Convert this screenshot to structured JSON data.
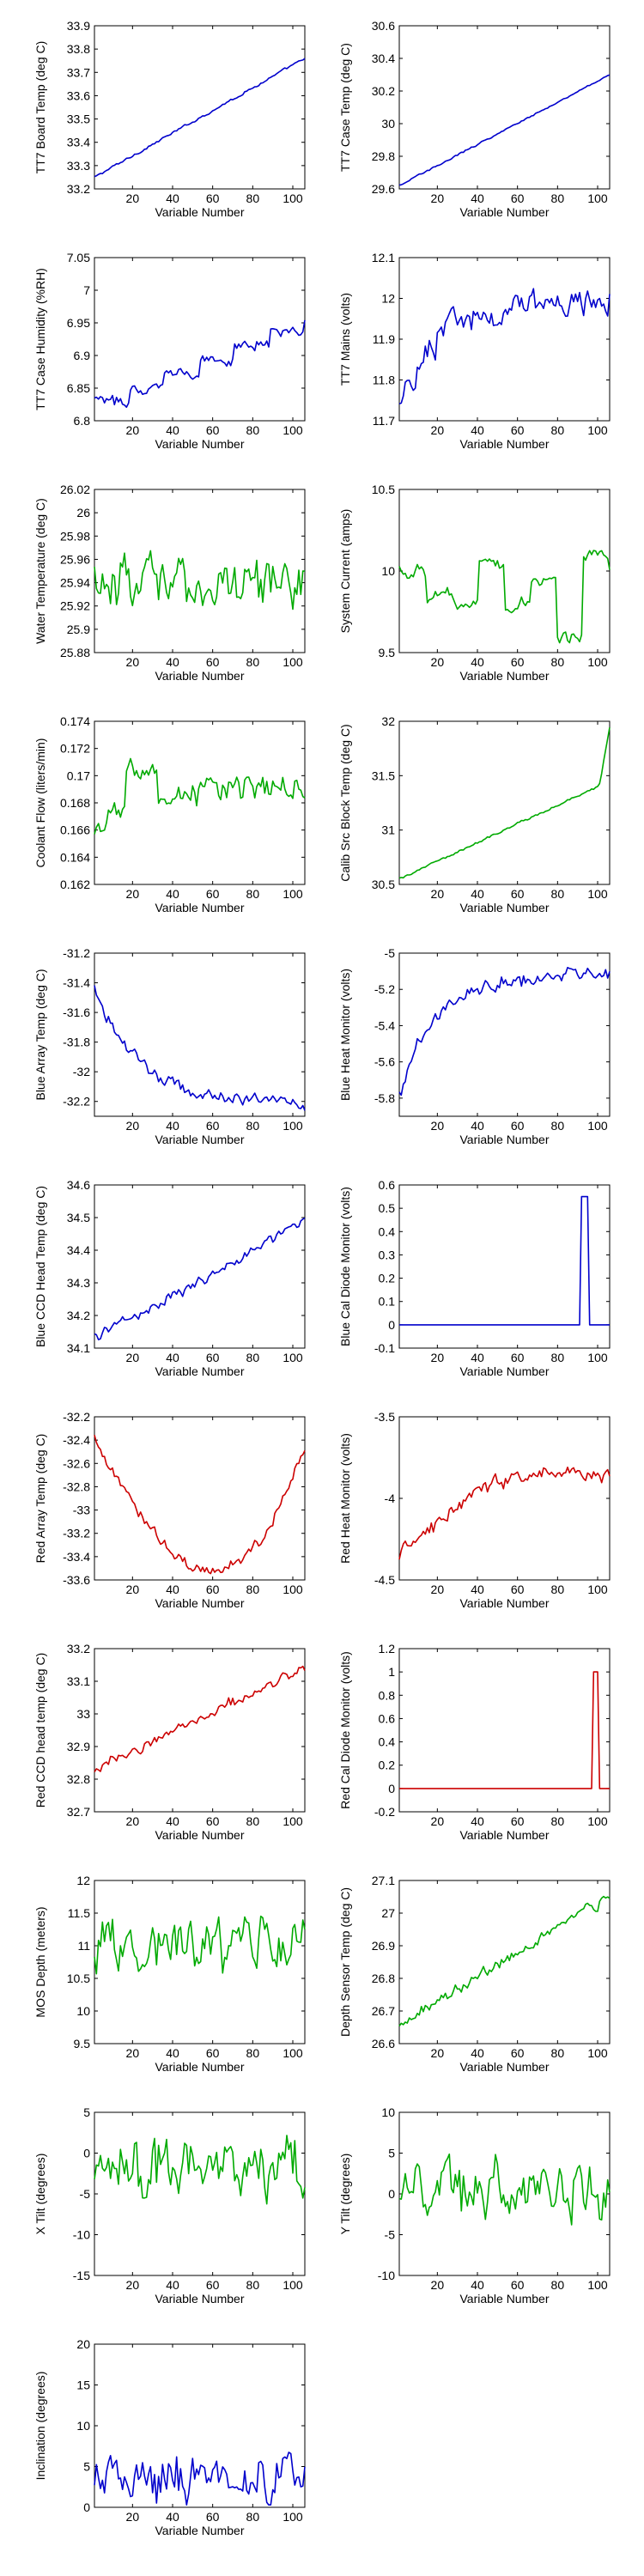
{
  "xlabel": "Variable Number",
  "x_ticks": [
    20,
    40,
    60,
    80,
    100
  ],
  "xlim": [
    1,
    106
  ],
  "chart_data": [
    {
      "type": "line",
      "ylabel": "TT7 Board Temp (deg C)",
      "ylim": [
        33.2,
        33.9
      ],
      "yticks": [
        33.2,
        33.3,
        33.4,
        33.5,
        33.6,
        33.7,
        33.8,
        33.9
      ],
      "color": "#0000cc",
      "shape": "trend",
      "v0": 33.25,
      "v1": 33.76,
      "noise": 0.004
    },
    {
      "type": "line",
      "ylabel": "TT7 Case Temp (deg C)",
      "ylim": [
        29.6,
        30.6
      ],
      "yticks": [
        29.6,
        29.8,
        30,
        30.2,
        30.4,
        30.6
      ],
      "color": "#0000cc",
      "shape": "trend",
      "v0": 29.62,
      "v1": 30.3,
      "noise": 0.004
    },
    {
      "type": "line",
      "ylabel": "TT7 Case Humidity (%RH)",
      "ylim": [
        6.8,
        7.05
      ],
      "yticks": [
        6.8,
        6.85,
        6.9,
        6.95,
        7,
        7.05
      ],
      "color": "#0000cc",
      "shape": "steps",
      "v0": 6.83,
      "v1": 6.96,
      "noise": 0.006
    },
    {
      "type": "line",
      "ylabel": "TT7 Mains  (volts)",
      "ylim": [
        11.7,
        12.1
      ],
      "yticks": [
        11.7,
        11.8,
        11.9,
        12,
        12.1
      ],
      "color": "#0000cc",
      "shape": "rise",
      "v0": 11.72,
      "v1": 11.99,
      "noise": 0.025
    },
    {
      "type": "line",
      "ylabel": "Water Temperature (deg C)",
      "ylim": [
        25.88,
        26.02
      ],
      "yticks": [
        25.88,
        25.9,
        25.92,
        25.94,
        25.96,
        25.98,
        26,
        26.02
      ],
      "color": "#00aa00",
      "shape": "noise",
      "v0": 25.94,
      "v1": 25.94,
      "noise": 0.015
    },
    {
      "type": "line",
      "ylabel": "System Current (amps)",
      "ylim": [
        9.5,
        10.5
      ],
      "yticks": [
        9.5,
        10,
        10.5
      ],
      "color": "#00aa00",
      "shape": "blocks",
      "v0": 9.85,
      "v1": 10.0,
      "noise": 0.03
    },
    {
      "type": "line",
      "ylabel": "Coolant Flow (liters/min)",
      "ylim": [
        0.162,
        0.174
      ],
      "yticks": [
        0.162,
        0.164,
        0.166,
        0.168,
        0.17,
        0.172,
        0.174
      ],
      "color": "#00aa00",
      "shape": "bump",
      "v0": 0.165,
      "v1": 0.169,
      "noise": 0.0007
    },
    {
      "type": "line",
      "ylabel": "Calib Src Block Temp (deg C)",
      "ylim": [
        30.5,
        32
      ],
      "yticks": [
        30.5,
        31,
        31.5,
        32
      ],
      "color": "#00aa00",
      "shape": "trend_end",
      "v0": 30.55,
      "v1": 31.45,
      "noise": 0.008
    },
    {
      "type": "line",
      "ylabel": "Blue Array Temp (deg C)",
      "ylim": [
        -32.3,
        -31.2
      ],
      "yticks": [
        -32.2,
        -32,
        -31.8,
        -31.6,
        -31.4,
        -31.2
      ],
      "color": "#0000cc",
      "shape": "decay",
      "v0": -31.45,
      "v1": -32.22,
      "noise": 0.03
    },
    {
      "type": "line",
      "ylabel": "Blue Heat Monitor (volts)",
      "ylim": [
        -5.9,
        -5
      ],
      "yticks": [
        -5.8,
        -5.6,
        -5.4,
        -5.2,
        -5
      ],
      "color": "#0000cc",
      "shape": "rise",
      "v0": -5.8,
      "v1": -5.12,
      "noise": 0.03
    },
    {
      "type": "line",
      "ylabel": "Blue CCD Head Temp (deg C)",
      "ylim": [
        34.1,
        34.6
      ],
      "yticks": [
        34.1,
        34.2,
        34.3,
        34.4,
        34.5,
        34.6
      ],
      "color": "#0000cc",
      "shape": "trend",
      "v0": 34.13,
      "v1": 34.48,
      "noise": 0.012
    },
    {
      "type": "line",
      "ylabel": "Blue Cal Diode Monitor (volts)",
      "ylim": [
        -0.1,
        0.6
      ],
      "yticks": [
        -0.1,
        0,
        0.1,
        0.2,
        0.3,
        0.4,
        0.5,
        0.6
      ],
      "color": "#0000cc",
      "shape": "spike",
      "v0": 0,
      "v1": 0.55,
      "spike_at": [
        92,
        95
      ],
      "noise": 0
    },
    {
      "type": "line",
      "ylabel": "Red Array Temp (deg C)",
      "ylim": [
        -33.6,
        -32.2
      ],
      "yticks": [
        -33.6,
        -33.4,
        -33.2,
        -33,
        -32.8,
        -32.6,
        -32.4,
        -32.2
      ],
      "color": "#cc0000",
      "shape": "valley",
      "v0": -32.4,
      "v1": -33.25,
      "noise": 0.035
    },
    {
      "type": "line",
      "ylabel": "Red Heat Monitor (volts)",
      "ylim": [
        -4.5,
        -3.5
      ],
      "yticks": [
        -4.5,
        -4,
        -3.5
      ],
      "color": "#cc0000",
      "shape": "hill",
      "v0": -4.35,
      "v1": -3.8,
      "noise": 0.035
    },
    {
      "type": "line",
      "ylabel": "Red CCD head temp (deg C)",
      "ylim": [
        32.7,
        33.2
      ],
      "yticks": [
        32.7,
        32.8,
        32.9,
        33,
        33.1,
        33.2
      ],
      "color": "#cc0000",
      "shape": "trend",
      "v0": 32.83,
      "v1": 33.14,
      "noise": 0.012
    },
    {
      "type": "line",
      "ylabel": "Red Cal Diode Monitor (volts)",
      "ylim": [
        -0.2,
        1.2
      ],
      "yticks": [
        -0.2,
        0,
        0.2,
        0.4,
        0.6,
        0.8,
        1,
        1.2
      ],
      "color": "#cc0000",
      "shape": "spike",
      "v0": 0,
      "v1": 1.0,
      "spike_at": [
        98,
        100
      ],
      "noise": 0
    },
    {
      "type": "line",
      "ylabel": "MOS Depth  (meters)",
      "ylim": [
        9.5,
        12
      ],
      "yticks": [
        9.5,
        10,
        10.5,
        11,
        11.5,
        12
      ],
      "color": "#00aa00",
      "shape": "noise",
      "v0": 11.0,
      "v1": 11.0,
      "noise": 0.3
    },
    {
      "type": "line",
      "ylabel": "Depth Sensor Temp (deg C)",
      "ylim": [
        26.6,
        27.1
      ],
      "yticks": [
        26.6,
        26.7,
        26.8,
        26.9,
        27,
        27.1
      ],
      "color": "#00aa00",
      "shape": "trend",
      "v0": 26.66,
      "v1": 27.05,
      "noise": 0.012
    },
    {
      "type": "line",
      "ylabel": "X Tilt  (degrees)",
      "ylim": [
        -15,
        5
      ],
      "yticks": [
        -15,
        -10,
        -5,
        0,
        5
      ],
      "color": "#00aa00",
      "shape": "noise",
      "v0": -2,
      "v1": -2,
      "noise": 2.5
    },
    {
      "type": "line",
      "ylabel": "Y Tilt  (degrees)",
      "ylim": [
        -10,
        10
      ],
      "yticks": [
        -10,
        -5,
        0,
        5,
        10
      ],
      "color": "#00aa00",
      "shape": "noise",
      "v0": 0.5,
      "v1": 0.5,
      "noise": 2.5
    },
    {
      "type": "line",
      "ylabel": "Inclination  (degrees)",
      "ylim": [
        0,
        20
      ],
      "yticks": [
        0,
        5,
        10,
        15,
        20
      ],
      "color": "#0000cc",
      "shape": "noise_pos",
      "v0": 3.5,
      "v1": 3.5,
      "noise": 2.0
    }
  ]
}
